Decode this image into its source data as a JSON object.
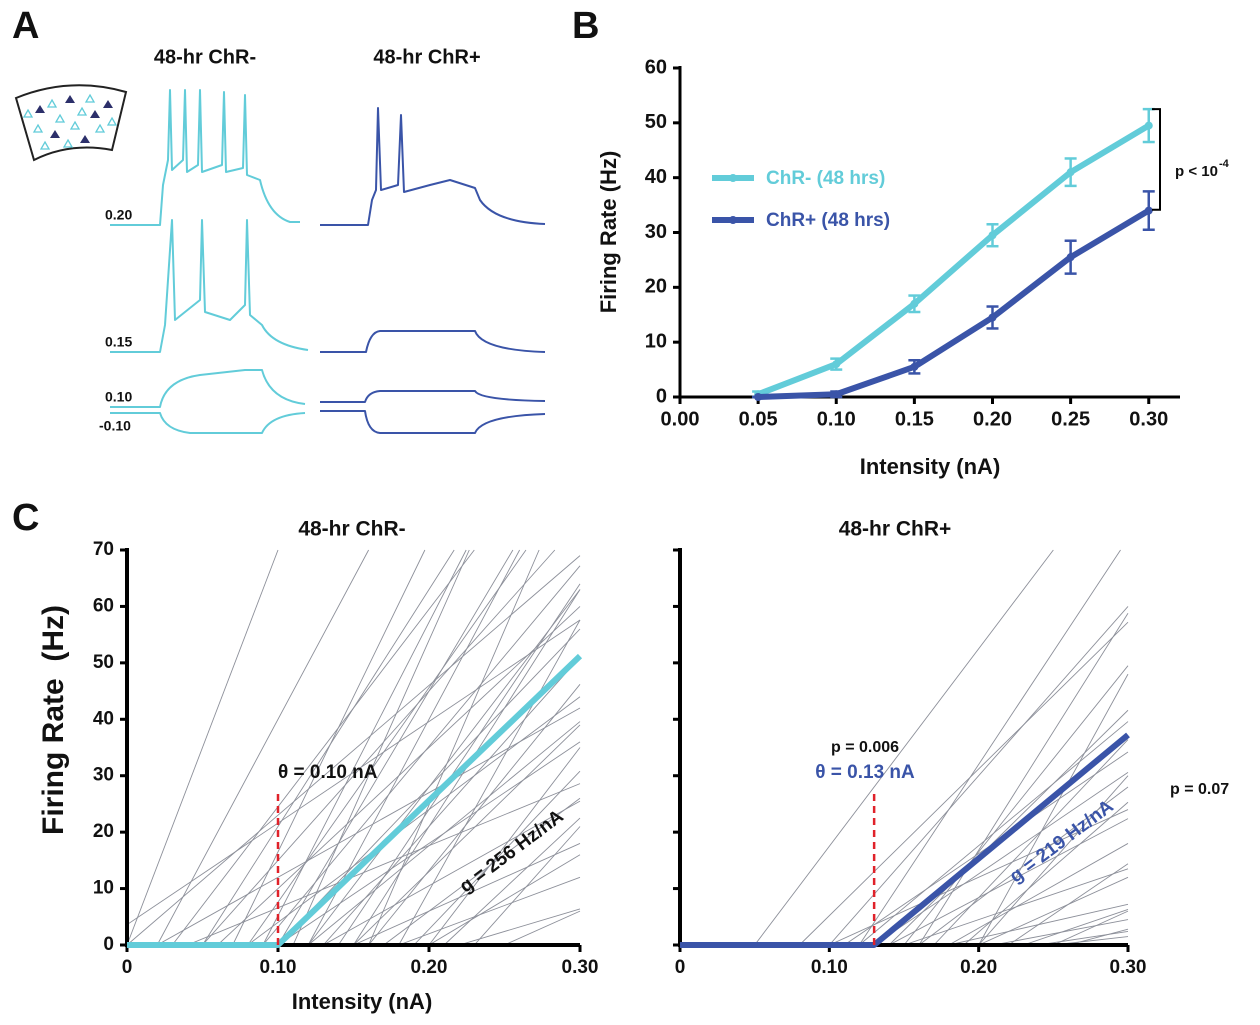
{
  "panel_labels": [
    "A",
    "B",
    "C"
  ],
  "panel_a": {
    "columns": [
      "48-hr ChR-",
      "48-hr ChR+"
    ],
    "currents": [
      "0.20",
      "0.15",
      "0.10",
      "-0.10"
    ]
  },
  "chart_data": [
    {
      "type": "line",
      "x": [
        0.05,
        0.1,
        0.15,
        0.2,
        0.25,
        0.3
      ],
      "xlim": [
        0,
        0.32
      ],
      "xticks": [
        {
          "value": 0,
          "label": "0.00"
        },
        {
          "value": 0.05,
          "label": "0.05"
        },
        {
          "value": 0.1,
          "label": "0.10"
        },
        {
          "value": 0.15,
          "label": "0.15"
        },
        {
          "value": 0.2,
          "label": "0.20"
        },
        {
          "value": 0.25,
          "label": "0.25"
        },
        {
          "value": 0.3,
          "label": "0.30"
        }
      ],
      "ylim": [
        0,
        60
      ],
      "yticks": [
        0,
        10,
        20,
        30,
        40,
        50,
        60
      ],
      "xlabel": "Intensity (nA)",
      "ylabel": "Firing Rate (Hz)",
      "legend": "upper left",
      "series": [
        {
          "name": "ChR- (48 hrs)",
          "color": "#62ccd9",
          "values": [
            0.5,
            6,
            17,
            29.5,
            41,
            49.5
          ],
          "errors": [
            0.5,
            1,
            1.5,
            2,
            2.5,
            3
          ]
        },
        {
          "name": "ChR+ (48 hrs)",
          "color": "#3a54a8",
          "values": [
            0,
            0.5,
            5.5,
            14.5,
            25.5,
            34
          ],
          "errors": [
            0,
            0.5,
            1.2,
            2,
            3,
            3.5
          ]
        }
      ],
      "annotation": {
        "text": "p < 10",
        "exponent": "-4"
      }
    },
    {
      "type": "line",
      "title": "48-hr ChR-",
      "xlim": [
        0,
        0.3
      ],
      "xticks": [
        0,
        {
          "value": 0.1,
          "label": "0.10"
        },
        {
          "value": 0.2,
          "label": "0.20"
        },
        {
          "value": 0.3,
          "label": "0.30"
        }
      ],
      "ylim": [
        0,
        70
      ],
      "yticks": [
        0,
        10,
        20,
        30,
        40,
        50,
        60,
        70
      ],
      "xlabel": "Intensity (nA)",
      "ylabel": "Firing Rate  (Hz)",
      "cell_color": "#8d909a",
      "cell_thresholds": [
        0.0,
        0.02,
        0.03,
        0.05,
        0.05,
        0.06,
        0.07,
        0.08,
        0.08,
        0.09,
        0.1,
        0.1,
        0.1,
        0.11,
        0.12,
        0.12,
        0.13,
        0.13,
        0.14,
        0.15,
        0.15,
        0.16,
        0.17,
        0.18,
        0.18,
        0.19,
        0.2,
        0.2,
        0.21,
        0.22,
        0.23,
        0.25,
        0.02,
        0.0,
        -0.02,
        0.04,
        0.15,
        0.09,
        0.12,
        0.16
      ],
      "cell_gains": [
        700,
        500,
        350,
        420,
        300,
        250,
        550,
        380,
        200,
        320,
        450,
        280,
        180,
        600,
        350,
        220,
        300,
        150,
        400,
        260,
        120,
        330,
        200,
        480,
        100,
        280,
        350,
        160,
        250,
        80,
        300,
        120,
        150,
        230,
        180,
        110,
        420,
        520,
        500,
        620
      ],
      "mean": {
        "threshold": 0.1,
        "gain": 256,
        "color": "#62ccd9"
      },
      "annotations": [
        "θ = 0.10 nA",
        "g = 256 Hz/nA"
      ]
    },
    {
      "type": "line",
      "title": "48-hr ChR+",
      "xlim": [
        0,
        0.3
      ],
      "xticks": [
        0,
        {
          "value": 0.1,
          "label": "0.10"
        },
        {
          "value": 0.2,
          "label": "0.20"
        },
        {
          "value": 0.3,
          "label": "0.30"
        }
      ],
      "ylim": [
        0,
        70
      ],
      "yticks": [
        0,
        10,
        20,
        30,
        40,
        50,
        60,
        70
      ],
      "ytick_labels": false,
      "cell_color": "#8d909a",
      "cell_thresholds": [
        0.05,
        0.08,
        0.1,
        0.12,
        0.12,
        0.13,
        0.14,
        0.14,
        0.15,
        0.15,
        0.16,
        0.17,
        0.18,
        0.18,
        0.19,
        0.2,
        0.2,
        0.21,
        0.22,
        0.23,
        0.24,
        0.25,
        0.25,
        0.26,
        0.11,
        0.1,
        0.16,
        0.2
      ],
      "cell_gains": [
        350,
        260,
        300,
        220,
        400,
        180,
        260,
        140,
        330,
        90,
        200,
        280,
        150,
        60,
        230,
        120,
        300,
        50,
        180,
        90,
        40,
        120,
        30,
        70,
        180,
        120,
        420,
        480
      ],
      "mean": {
        "threshold": 0.13,
        "gain": 219,
        "color": "#3a54a8"
      },
      "annotations": [
        "p = 0.006",
        "θ = 0.13 nA",
        "g = 219 Hz/nA",
        "p = 0.07"
      ]
    }
  ]
}
